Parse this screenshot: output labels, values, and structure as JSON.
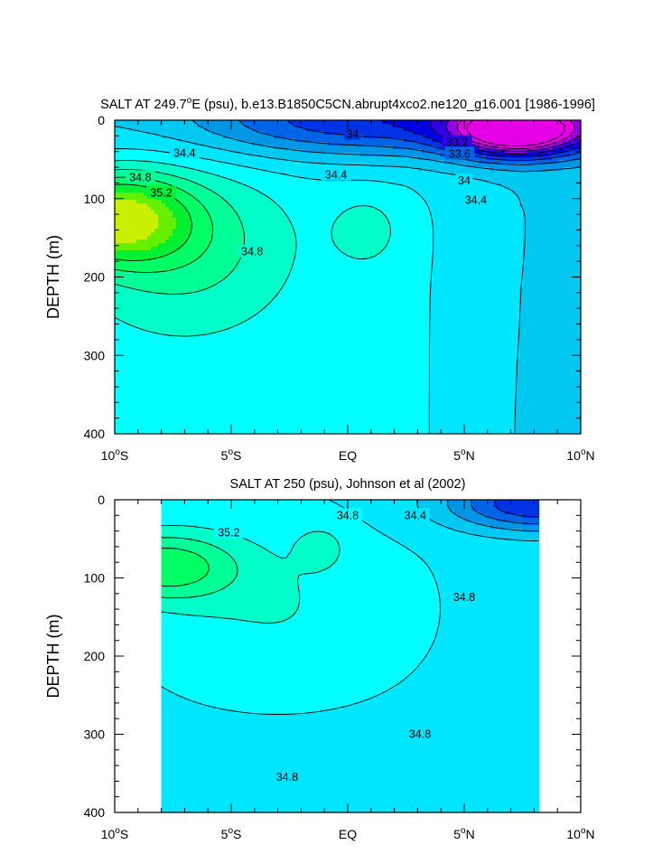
{
  "chart_data": [
    {
      "type": "contour",
      "title_parts": [
        "SALT AT 249.7",
        "o",
        "E (psu), b.e13.B1850C5CN.abrupt4xco2.ne120_g16.001 [1986-1996]"
      ],
      "ylabel": "DEPTH (m)",
      "xlabel": "",
      "xlim": [
        -10,
        10
      ],
      "ylim": [
        400,
        0
      ],
      "y_reversed": true,
      "x_ticks": [
        {
          "value": -10,
          "num": "10",
          "deg": "o",
          "hemi": "S"
        },
        {
          "value": -5,
          "num": "5",
          "deg": "o",
          "hemi": "S"
        },
        {
          "value": 0,
          "num": "EQ",
          "deg": "",
          "hemi": ""
        },
        {
          "value": 5,
          "num": "5",
          "deg": "o",
          "hemi": "N"
        },
        {
          "value": 10,
          "num": "10",
          "deg": "o",
          "hemi": "N"
        }
      ],
      "y_ticks": [
        "0",
        "100",
        "200",
        "300",
        "400"
      ],
      "y_tick_values": [
        0,
        100,
        200,
        300,
        400
      ],
      "contour_interval": 0.2,
      "contour_labels": [
        {
          "text": "34",
          "lon": 0.2,
          "depth": 18
        },
        {
          "text": "33.2",
          "lon": 4.7,
          "depth": 28
        },
        {
          "text": "33.6",
          "lon": 4.8,
          "depth": 43
        },
        {
          "text": "34.4",
          "lon": -7.0,
          "depth": 42
        },
        {
          "text": "34.4",
          "lon": -0.5,
          "depth": 70
        },
        {
          "text": "34",
          "lon": 5.0,
          "depth": 77
        },
        {
          "text": "34.8",
          "lon": -8.9,
          "depth": 73
        },
        {
          "text": "35.2",
          "lon": -8.0,
          "depth": 93
        },
        {
          "text": "34.4",
          "lon": 5.5,
          "depth": 102
        },
        {
          "text": "34.8",
          "lon": -4.1,
          "depth": 168
        }
      ],
      "salinity_fields": [
        {
          "label": "max_core",
          "lon": -10,
          "depth": 125,
          "value": 35.7
        },
        {
          "label": "min_core",
          "lon": 7.2,
          "depth": 15,
          "value": 33.0
        },
        {
          "label": "background",
          "value": 34.6
        }
      ]
    },
    {
      "type": "contour",
      "title_parts": [
        "SALT AT 250 (psu), Johnson et al (2002)",
        "",
        ""
      ],
      "ylabel": "DEPTH (m)",
      "xlabel": "",
      "xlim": [
        -10,
        10
      ],
      "ylim": [
        400,
        0
      ],
      "y_reversed": true,
      "data_xlim": [
        -8.0,
        8.2
      ],
      "x_ticks": [
        {
          "value": -10,
          "num": "10",
          "deg": "o",
          "hemi": "S"
        },
        {
          "value": -5,
          "num": "5",
          "deg": "o",
          "hemi": "S"
        },
        {
          "value": 0,
          "num": "EQ",
          "deg": "",
          "hemi": ""
        },
        {
          "value": 5,
          "num": "5",
          "deg": "o",
          "hemi": "N"
        },
        {
          "value": 10,
          "num": "10",
          "deg": "o",
          "hemi": "N"
        }
      ],
      "y_ticks": [
        "0",
        "100",
        "200",
        "300",
        "400"
      ],
      "y_tick_values": [
        0,
        100,
        200,
        300,
        400
      ],
      "contour_interval": 0.2,
      "contour_labels": [
        {
          "text": "35.2",
          "lon": -5.1,
          "depth": 42
        },
        {
          "text": "34.8",
          "lon": 0.0,
          "depth": 20
        },
        {
          "text": "34.4",
          "lon": 2.9,
          "depth": 20
        },
        {
          "text": "34.8",
          "lon": 5.0,
          "depth": 125
        },
        {
          "text": "34.8",
          "lon": 3.1,
          "depth": 300
        },
        {
          "text": "34.8",
          "lon": -2.6,
          "depth": 355
        }
      ],
      "salinity_fields": [
        {
          "label": "max_core",
          "lon": -8.0,
          "depth": 85,
          "value": 35.5
        },
        {
          "label": "min_corner",
          "lon": 8.2,
          "depth": 5,
          "value": 33.8
        },
        {
          "label": "background",
          "value": 34.75
        }
      ]
    }
  ],
  "colors": {
    "palette": [
      "#e600e6",
      "#9600e6",
      "#3200e6",
      "#0000e6",
      "#0032e6",
      "#0064e6",
      "#0096e6",
      "#00c8f0",
      "#00e6ff",
      "#00ffff",
      "#00ffc8",
      "#00ff96",
      "#00ff64",
      "#00f032",
      "#64f000",
      "#c8f000"
    ],
    "palette_min": 33.0,
    "palette_step": 0.2
  }
}
